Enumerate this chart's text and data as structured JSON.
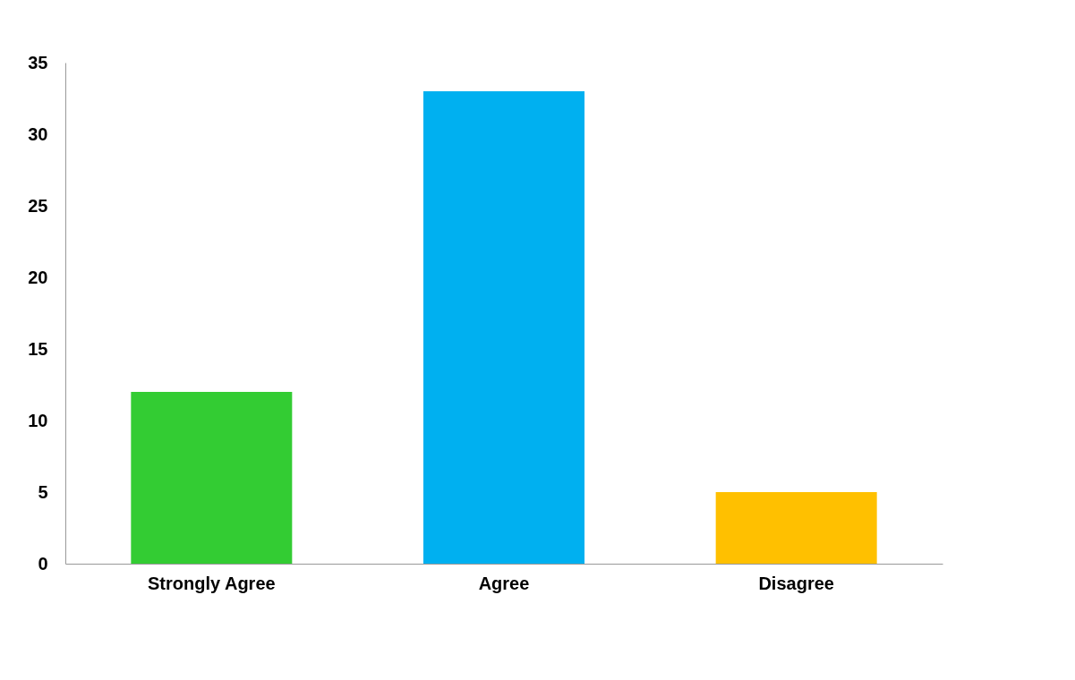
{
  "chart_data": {
    "type": "bar",
    "categories": [
      "Strongly Agree",
      "Agree",
      "Disagree"
    ],
    "values": [
      12,
      33,
      5
    ],
    "colors": [
      "#33cc33",
      "#00b0f0",
      "#ffc000"
    ],
    "ylim": [
      0,
      35
    ],
    "yticks": [
      0,
      5,
      10,
      15,
      20,
      25,
      30,
      35
    ],
    "grid": false
  }
}
